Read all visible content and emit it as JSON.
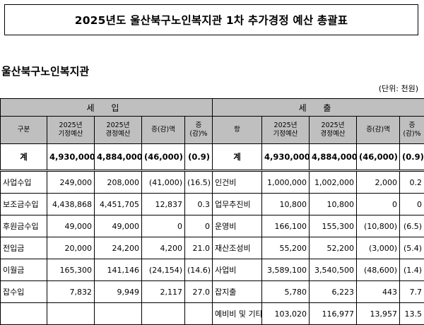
{
  "title": "2025년도 울산북구노인복지관 1차 추가경정 예산 총괄표",
  "org_name": "울산북구노인복지관",
  "unit": "(단위: 천원)",
  "headers": {
    "income_section": "세 입",
    "expense_section": "세 출",
    "income_cols": [
      "구분",
      "2025년\n기정예산",
      "2025년\n경정예산",
      "증(감)액",
      "증(감)%"
    ],
    "expense_cols": [
      "항",
      "2025년\n기정예산",
      "2025년\n경정예산",
      "증(감)액",
      "증(감)%"
    ]
  },
  "total": {
    "income": {
      "label": "계",
      "original": "4,930,000",
      "revised": "4,884,000",
      "change": "(46,000)",
      "pct": "(0.9)"
    },
    "expense": {
      "label": "계",
      "original": "4,930,000",
      "revised": "4,884,000",
      "change": "(46,000)",
      "pct": "(0.9)"
    }
  },
  "income_rows": [
    {
      "label": "사업수입",
      "original": "249,000",
      "revised": "208,000",
      "change": "(41,000)",
      "pct": "(16.5)"
    },
    {
      "label": "보조금수입",
      "original": "4,438,868",
      "revised": "4,451,705",
      "change": "12,837",
      "pct": "0.3"
    },
    {
      "label": "후원금수입",
      "original": "49,000",
      "revised": "49,000",
      "change": "0",
      "pct": "0"
    },
    {
      "label": "전입금",
      "original": "20,000",
      "revised": "24,200",
      "change": "4,200",
      "pct": "21.0"
    },
    {
      "label": "이월금",
      "original": "165,300",
      "revised": "141,146",
      "change": "(24,154)",
      "pct": "(14.6)"
    },
    {
      "label": "잡수입",
      "original": "7,832",
      "revised": "9,949",
      "change": "2,117",
      "pct": "27.0"
    }
  ],
  "expense_rows": [
    {
      "label": "인건비",
      "original": "1,000,000",
      "revised": "1,002,000",
      "change": "2,000",
      "pct": "0.2"
    },
    {
      "label": "업무추진비",
      "original": "10,800",
      "revised": "10,800",
      "change": "0",
      "pct": "0"
    },
    {
      "label": "운영비",
      "original": "166,100",
      "revised": "155,300",
      "change": "(10,800)",
      "pct": "(6.5)"
    },
    {
      "label": "재산조성비",
      "original": "55,200",
      "revised": "52,200",
      "change": "(3,000)",
      "pct": "(5.4)"
    },
    {
      "label": "사업비",
      "original": "3,589,100",
      "revised": "3,540,500",
      "change": "(48,600)",
      "pct": "(1.4)"
    },
    {
      "label": "잡지출",
      "original": "5,780",
      "revised": "6,223",
      "change": "443",
      "pct": "7.7"
    },
    {
      "label": "예비비 및 기타",
      "original": "103,020",
      "revised": "116,977",
      "change": "13,957",
      "pct": "13.5"
    }
  ]
}
